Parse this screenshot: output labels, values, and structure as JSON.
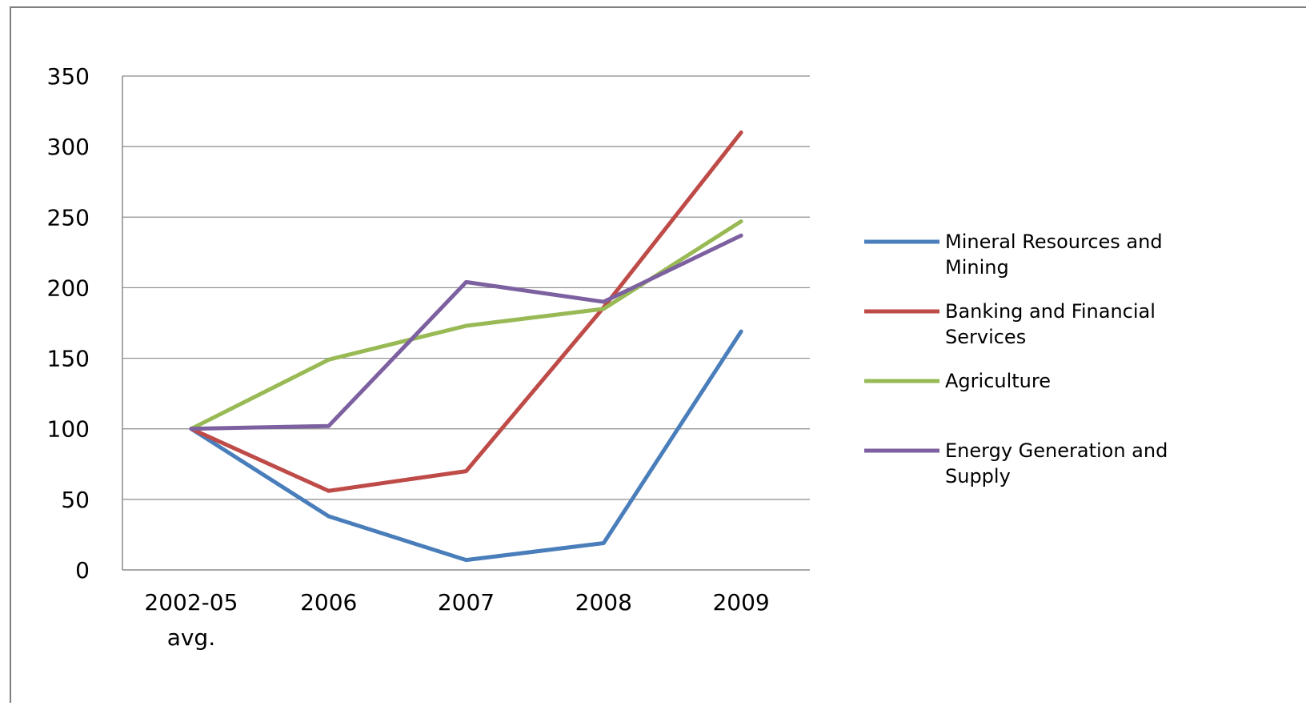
{
  "chart_data": {
    "type": "line",
    "title": "",
    "xlabel": "",
    "ylabel": "",
    "categories": [
      [
        "2002-05",
        "avg."
      ],
      [
        "2006"
      ],
      [
        "2007"
      ],
      [
        "2008"
      ],
      [
        "2009"
      ]
    ],
    "ylim": [
      0,
      350
    ],
    "yticks": [
      0,
      50,
      100,
      150,
      200,
      250,
      300,
      350
    ],
    "grid": "horizontal",
    "legend_position": "right",
    "series": [
      {
        "name": [
          "Mineral Resources and",
          "Mining"
        ],
        "color": "#4a7ebb",
        "values": [
          100,
          38,
          7,
          19,
          169
        ]
      },
      {
        "name": [
          "Banking and Financial",
          "Services"
        ],
        "color": "#be4b48",
        "values": [
          100,
          56,
          70,
          186,
          310
        ]
      },
      {
        "name": [
          "Agriculture"
        ],
        "color": "#98b954",
        "values": [
          100,
          149,
          173,
          185,
          247
        ]
      },
      {
        "name": [
          "Energy Generation and",
          "Supply"
        ],
        "color": "#7d60a0",
        "values": [
          100,
          102,
          204,
          190,
          237
        ]
      }
    ]
  }
}
